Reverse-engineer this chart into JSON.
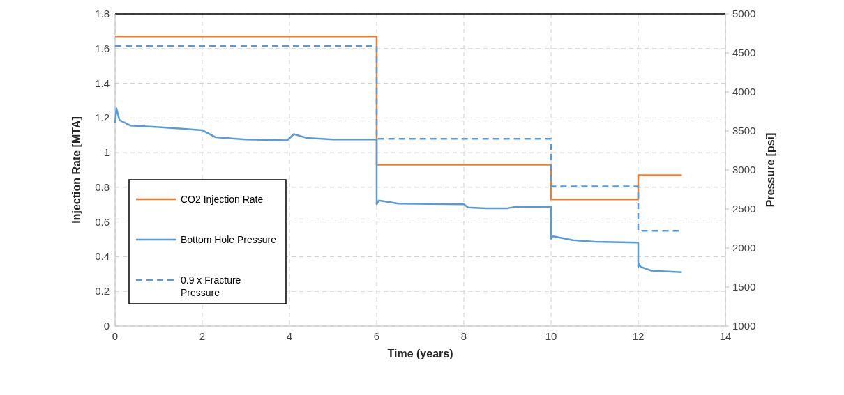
{
  "chart_data": {
    "type": "line",
    "xlabel": "Time (years)",
    "ylabel": "Injection Rate [MTA]",
    "y2label": "Pressure [psi]",
    "xlim": [
      0,
      14
    ],
    "xticks": [
      0,
      2,
      4,
      6,
      8,
      10,
      12,
      14
    ],
    "ylim": [
      0,
      1.8
    ],
    "yticks": [
      0,
      0.2,
      0.4,
      0.6,
      0.8,
      1,
      1.2,
      1.4,
      1.6,
      1.8
    ],
    "y2lim": [
      1000,
      5000
    ],
    "y2ticks": [
      1000,
      1500,
      2000,
      2500,
      3000,
      3500,
      4000,
      4500,
      5000
    ],
    "grid": true,
    "legend": "bottom left",
    "series": [
      {
        "name": "CO2 Injection Rate",
        "type": "step",
        "color": "#ed7d31",
        "x": [
          0,
          6,
          10,
          12,
          13
        ],
        "values": [
          1.67,
          0.93,
          0.73,
          0.87,
          0.87
        ]
      },
      {
        "name": "Bottom Hole Pressure",
        "type": "line",
        "axis": "y2",
        "color": "#5b9bd5",
        "x": [
          0,
          0.03,
          0.1,
          0.35,
          1,
          2,
          2.3,
          3,
          3.95,
          4.1,
          4.4,
          5,
          6,
          6,
          6.05,
          6.5,
          8,
          8.1,
          8.5,
          9,
          9.2,
          10,
          10,
          10.05,
          10.5,
          11,
          12,
          12,
          12.02,
          12.05,
          12.3,
          13
        ],
        "values": [
          3600,
          3790,
          3640,
          3570,
          3550,
          3510,
          3420,
          3390,
          3380,
          3460,
          3410,
          3390,
          3390,
          2560,
          2610,
          2570,
          2560,
          2520,
          2510,
          2510,
          2530,
          2530,
          2120,
          2150,
          2100,
          2080,
          2070,
          1760,
          1800,
          1760,
          1710,
          1690
        ]
      },
      {
        "name": "0.9 x Fracture Pressure",
        "type": "step",
        "axis": "y2",
        "line_style": "dashed",
        "color": "#5b9bd5",
        "x": [
          0,
          6,
          10,
          12,
          13
        ],
        "values": [
          4590,
          3400,
          2790,
          2220,
          2220
        ]
      }
    ]
  }
}
